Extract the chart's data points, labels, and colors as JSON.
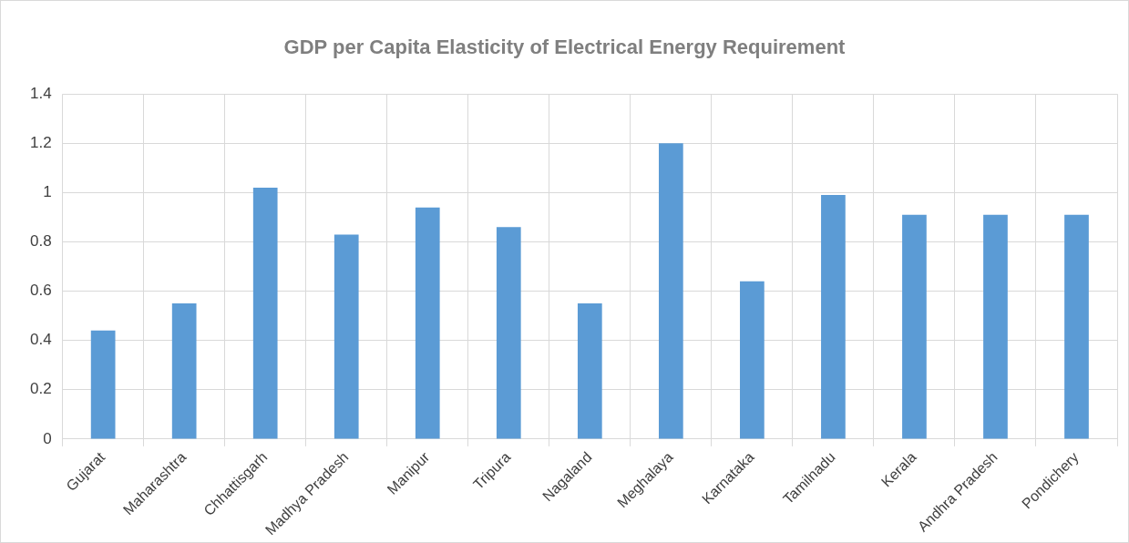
{
  "chart_data": {
    "type": "bar",
    "title": "GDP per Capita Elasticity of Electrical Energy Requirement",
    "categories": [
      "Gujarat",
      "Maharashtra",
      "Chhattisgarh",
      "Madhya Pradesh",
      "Manipur",
      "Tripura",
      "Nagaland",
      "Meghalaya",
      "Karnataka",
      "Tamilnadu",
      "Kerala",
      "Andhra Pradesh",
      "Pondichery"
    ],
    "values": [
      0.44,
      0.55,
      1.02,
      0.83,
      0.94,
      0.86,
      0.55,
      1.2,
      0.64,
      0.99,
      0.91,
      0.91,
      0.91
    ],
    "color": "#5b9bd5",
    "ylim": [
      0,
      1.4
    ],
    "yticks": [
      0,
      0.2,
      0.4,
      0.6,
      0.8,
      1,
      1.2,
      1.4
    ],
    "grid": true,
    "legend": false
  }
}
